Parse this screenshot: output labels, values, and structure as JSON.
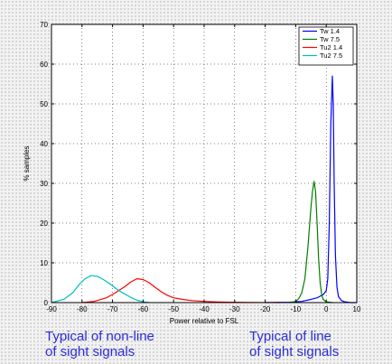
{
  "chart_data": {
    "type": "line",
    "title": "",
    "xlabel": "Power relative to FSL",
    "ylabel": "% samples",
    "xlim": [
      -90,
      10
    ],
    "ylim": [
      0,
      70
    ],
    "x_ticks": [
      "-90",
      "-80",
      "-70",
      "-60",
      "-50",
      "-40",
      "-30",
      "-20",
      "-10",
      "0",
      "10"
    ],
    "y_ticks": [
      "0",
      "10",
      "20",
      "30",
      "40",
      "50",
      "60",
      "70"
    ],
    "grid": "dotted",
    "legend_position": "top-right",
    "series": [
      {
        "name": "Tw 1.4",
        "color": "#0000ff",
        "x": [
          -20,
          -12,
          -8,
          -5,
          -3,
          -1,
          0,
          0.5,
          1,
          1.5,
          2,
          2.3,
          2.6,
          3,
          3.5,
          4,
          5,
          6,
          8,
          10
        ],
        "y": [
          0,
          0.1,
          0.3,
          0.8,
          1.2,
          2,
          3,
          6,
          20,
          45,
          57,
          50,
          30,
          12,
          4,
          1.5,
          0.5,
          0.2,
          0,
          0
        ]
      },
      {
        "name": "Tw 7.5",
        "color": "#007f00",
        "x": [
          -12,
          -10,
          -9,
          -8,
          -7,
          -6,
          -5,
          -4.5,
          -4,
          -3.5,
          -3,
          -2.5,
          -2,
          -1.5,
          -1,
          0,
          2
        ],
        "y": [
          0,
          0.3,
          1,
          2.5,
          6,
          14,
          24,
          28,
          30.5,
          28,
          20,
          11,
          5,
          2,
          0.8,
          0.2,
          0
        ]
      },
      {
        "name": "Tu2 1.4",
        "color": "#ff0000",
        "x": [
          -80,
          -76,
          -72,
          -69,
          -66,
          -64,
          -62,
          -60,
          -58,
          -56,
          -54,
          -52,
          -50,
          -47,
          -44,
          -40,
          -35,
          -30,
          -25,
          -20,
          -15
        ],
        "y": [
          0,
          0.3,
          1.2,
          2.5,
          4,
          5.2,
          6,
          5.8,
          5,
          3.8,
          2.7,
          1.8,
          1.2,
          0.8,
          0.5,
          0.3,
          0.15,
          0.08,
          0.03,
          0.01,
          0
        ]
      },
      {
        "name": "Tu2 7.5",
        "color": "#00bfbf",
        "x": [
          -90,
          -86,
          -83,
          -81,
          -79,
          -77,
          -75,
          -73,
          -71,
          -69,
          -67,
          -64,
          -62,
          -60,
          -58
        ],
        "y": [
          0,
          0.8,
          2.5,
          4.5,
          6,
          6.8,
          6.6,
          5.8,
          4.8,
          3.6,
          2.6,
          1.3,
          0.6,
          0.2,
          0
        ]
      }
    ]
  },
  "annotations": {
    "nlos_line1": "Typical of non-line",
    "nlos_line2": "of sight signals",
    "los_line1": "Typical of line",
    "los_line2": "of sight signals"
  }
}
